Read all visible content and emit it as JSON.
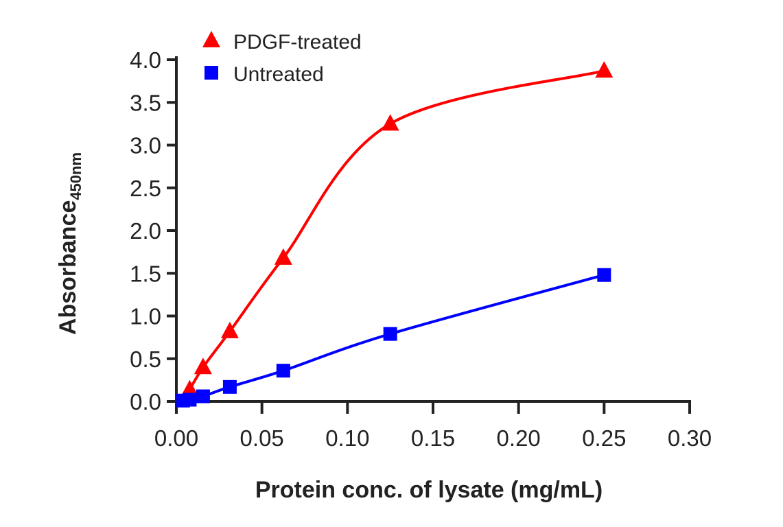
{
  "chart_data": {
    "type": "line",
    "title": "",
    "xlabel": "Protein conc. of lysate (mg/mL)",
    "ylabel": "Absorbance",
    "ylabel_sub": "450nm",
    "xlim": [
      0,
      0.3
    ],
    "ylim": [
      0,
      4.0
    ],
    "xticks": [
      "0.00",
      "0.05",
      "0.10",
      "0.15",
      "0.20",
      "0.25",
      "0.30"
    ],
    "yticks": [
      "0.0",
      "0.5",
      "1.0",
      "1.5",
      "2.0",
      "2.5",
      "3.0",
      "3.5",
      "4.0"
    ],
    "grid": false,
    "legend": "top-left",
    "series": [
      {
        "name": "PDGF-treated",
        "color": "#ff0000",
        "marker": "triangle",
        "x": [
          0.0078,
          0.0156,
          0.03125,
          0.0625,
          0.125,
          0.25
        ],
        "y": [
          0.14,
          0.4,
          0.82,
          1.68,
          3.25,
          3.87
        ]
      },
      {
        "name": "Untreated",
        "color": "#0000ff",
        "marker": "square",
        "x": [
          0.0039,
          0.0078,
          0.0156,
          0.03125,
          0.0625,
          0.125,
          0.25
        ],
        "y": [
          0.01,
          0.02,
          0.06,
          0.17,
          0.36,
          0.79,
          1.48
        ]
      }
    ]
  }
}
